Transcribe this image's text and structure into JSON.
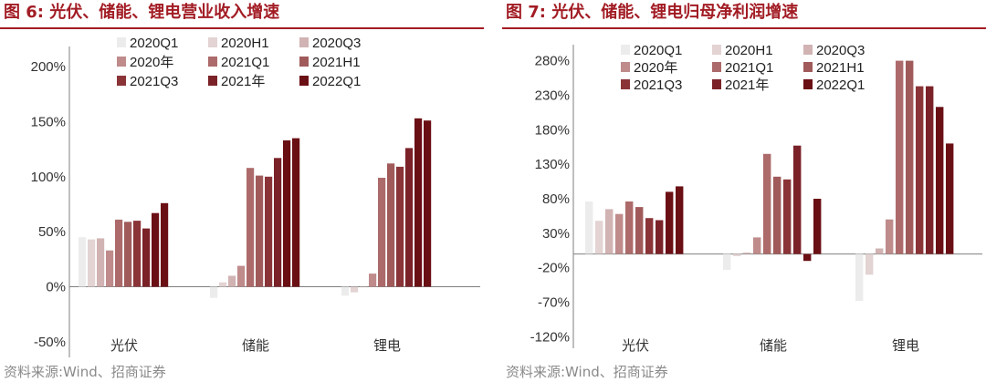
{
  "colors": [
    "#ececec",
    "#e3d3d3",
    "#d1b3b3",
    "#bf8b8b",
    "#ad6a6a",
    "#a05a5a",
    "#8a3438",
    "#7a2228",
    "#6a0f14"
  ],
  "charts": [
    {
      "id": "left",
      "figure_label": "图 6:",
      "title": "光伏、储能、锂电营业收入增速",
      "source": "资料来源:Wind、招商证券",
      "y_tick_labels": [
        "200%",
        "150%",
        "100%",
        "50%",
        "0%",
        "-50%"
      ]
    },
    {
      "id": "right",
      "figure_label": "图 7:",
      "title": "光伏、储能、锂电归母净利润增速",
      "source": "资料来源:Wind、招商证券",
      "y_tick_labels": [
        "280%",
        "230%",
        "180%",
        "130%",
        "80%",
        "30%",
        "-20%",
        "-70%",
        "-120%"
      ]
    }
  ],
  "chart_data": [
    {
      "type": "bar",
      "title": "光伏、储能、锂电营业收入增速",
      "categories": [
        "光伏",
        "储能",
        "锂电"
      ],
      "ylim": [
        -60,
        210
      ],
      "yticks": [
        200,
        150,
        100,
        50,
        0,
        -50
      ],
      "legend": "top-left, 3 columns",
      "grid": false,
      "series": [
        {
          "name": "2020Q1",
          "values": [
            45,
            -10,
            -8
          ]
        },
        {
          "name": "2020H1",
          "values": [
            43,
            4,
            -5
          ]
        },
        {
          "name": "2020Q3",
          "values": [
            44,
            10,
            0
          ]
        },
        {
          "name": "2020年",
          "values": [
            33,
            19,
            12
          ]
        },
        {
          "name": "2021Q1",
          "values": [
            61,
            108,
            99
          ]
        },
        {
          "name": "2021H1",
          "values": [
            59,
            101,
            112
          ]
        },
        {
          "name": "2021Q3",
          "values": [
            60,
            100,
            109
          ]
        },
        {
          "name": "2021年",
          "values": [
            53,
            117,
            126
          ]
        },
        {
          "name": "2022Q1",
          "values": [
            67,
            133,
            153
          ]
        }
      ],
      "extra_series_note_unused": null,
      "series_extra": [
        {
          "name": "",
          "values": [
            76,
            135,
            151
          ]
        }
      ]
    },
    {
      "type": "bar",
      "title": "光伏、储能、锂电归母净利润增速",
      "categories": [
        "光伏",
        "储能",
        "锂电"
      ],
      "ylim": [
        -130,
        290
      ],
      "yticks": [
        280,
        230,
        180,
        130,
        80,
        30,
        -20,
        -70,
        -120
      ],
      "legend": "top-left, 3 columns",
      "grid": false,
      "series": [
        {
          "name": "2020Q1",
          "values": [
            76,
            -23,
            -68
          ]
        },
        {
          "name": "2020H1",
          "values": [
            48,
            -3,
            -30
          ]
        },
        {
          "name": "2020Q3",
          "values": [
            65,
            2,
            8
          ]
        },
        {
          "name": "2020年",
          "values": [
            58,
            24,
            50
          ]
        },
        {
          "name": "2021Q1",
          "values": [
            76,
            145,
            280
          ]
        },
        {
          "name": "2021H1",
          "values": [
            68,
            112,
            280
          ]
        },
        {
          "name": "2021Q3",
          "values": [
            52,
            108,
            243
          ]
        },
        {
          "name": "2021年",
          "values": [
            49,
            157,
            243
          ]
        },
        {
          "name": "2022Q1",
          "values": [
            90,
            -10,
            213
          ]
        }
      ],
      "series_extra": [
        {
          "name": "",
          "values": [
            98,
            80,
            160
          ]
        }
      ]
    }
  ]
}
